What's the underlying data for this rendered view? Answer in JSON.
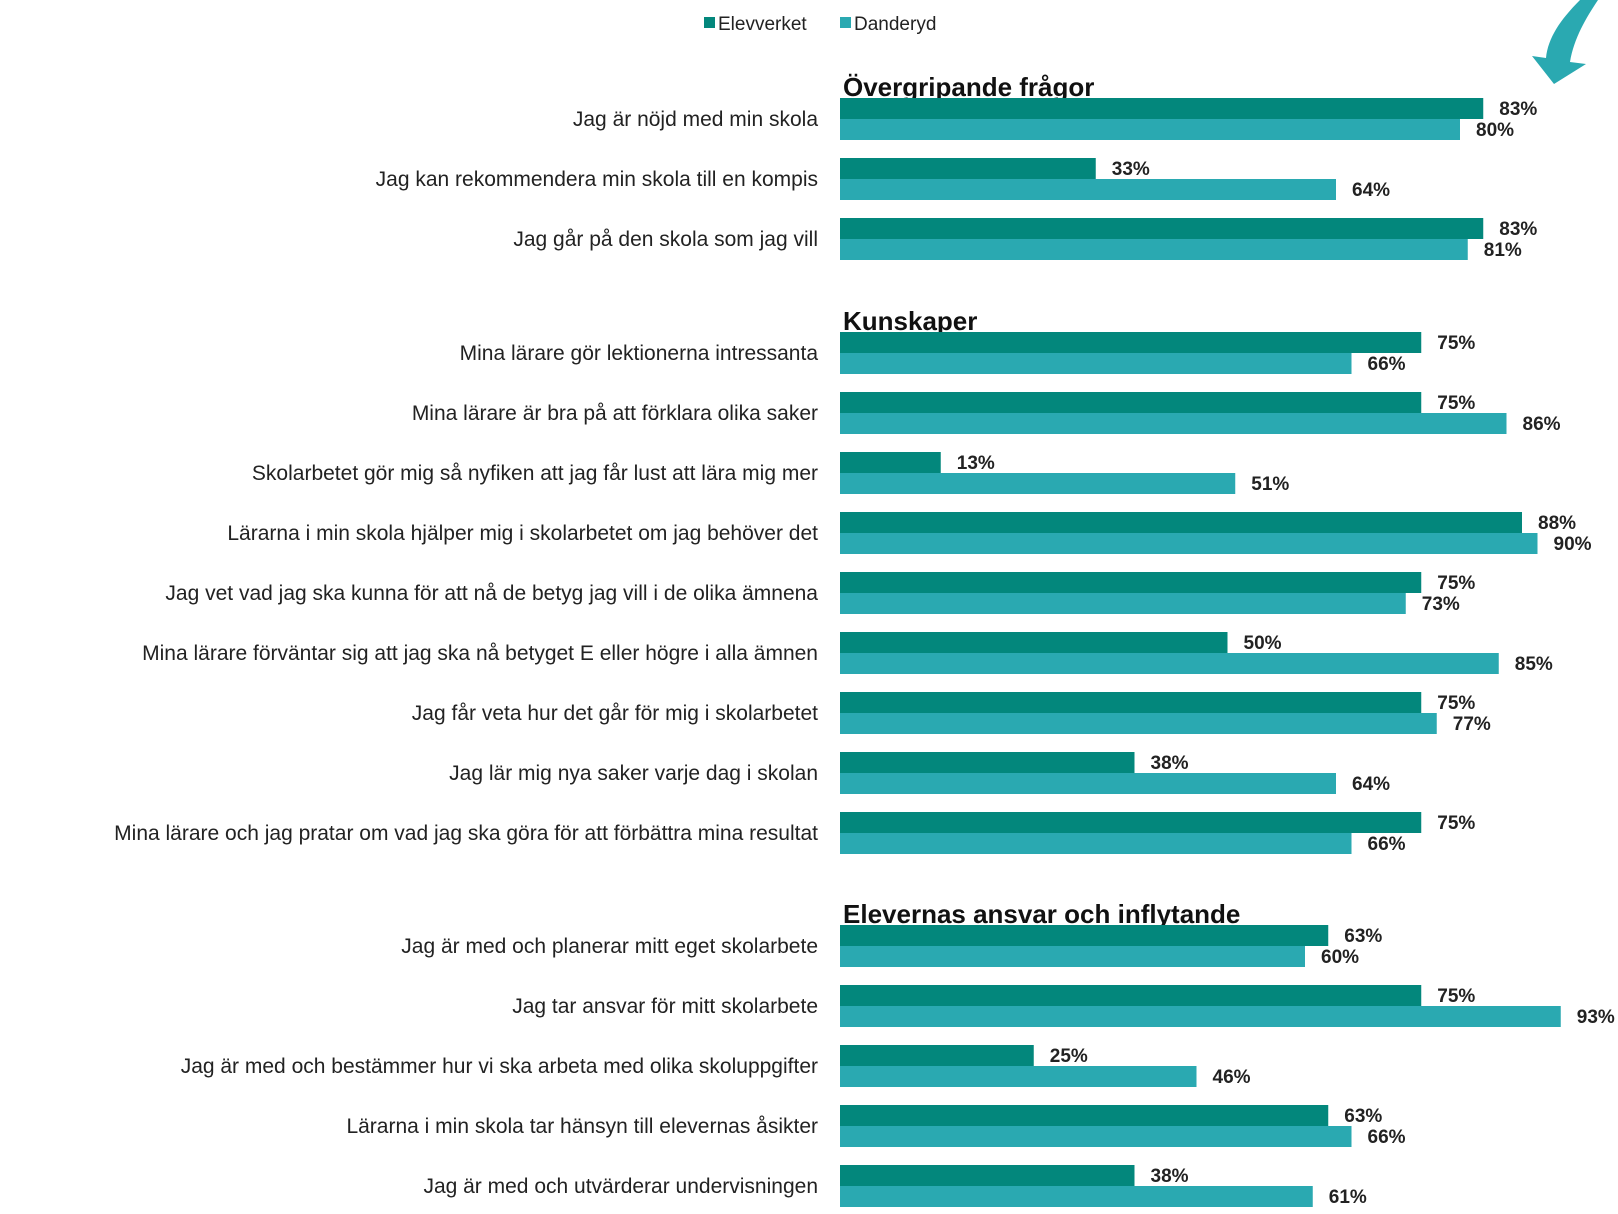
{
  "chart_data": {
    "type": "bar",
    "orientation": "horizontal",
    "xlim": [
      0,
      100
    ],
    "legend": {
      "placement": "top",
      "entries": [
        {
          "name": "Elevverket",
          "color": "#03877c"
        },
        {
          "name": "Danderyd",
          "color": "#2aa9b1"
        }
      ]
    },
    "series": [
      {
        "name": "Elevverket",
        "color": "#03877c"
      },
      {
        "name": "Danderyd",
        "color": "#2aa9b1"
      }
    ],
    "groups": [
      {
        "title": "Övergripande frågor",
        "items": [
          {
            "label": "Jag är nöjd med min skola",
            "values": [
              83,
              80
            ]
          },
          {
            "label": "Jag kan rekommendera min skola till en kompis",
            "values": [
              33,
              64
            ]
          },
          {
            "label": "Jag går på den skola som jag vill",
            "values": [
              83,
              81
            ]
          }
        ]
      },
      {
        "title": "Kunskaper",
        "items": [
          {
            "label": "Mina lärare gör lektionerna intressanta",
            "values": [
              75,
              66
            ]
          },
          {
            "label": "Mina lärare är bra på att förklara olika saker",
            "values": [
              75,
              86
            ]
          },
          {
            "label": "Skolarbetet gör mig så nyfiken att jag får lust att lära mig mer",
            "values": [
              13,
              51
            ]
          },
          {
            "label": "Lärarna i min skola hjälper mig i skolarbetet om jag behöver det",
            "values": [
              88,
              90
            ]
          },
          {
            "label": "Jag vet vad jag ska kunna för att nå de betyg jag vill i de olika ämnena",
            "values": [
              75,
              73
            ]
          },
          {
            "label": "Mina lärare förväntar sig att jag ska nå betyget E eller högre i alla ämnen",
            "values": [
              50,
              85
            ]
          },
          {
            "label": "Jag får veta hur det går för mig i skolarbetet",
            "values": [
              75,
              77
            ]
          },
          {
            "label": "Jag lär mig nya saker varje dag i skolan",
            "values": [
              38,
              64
            ]
          },
          {
            "label": "Mina lärare och jag pratar om vad jag ska göra för att förbättra mina resultat",
            "values": [
              75,
              66
            ]
          }
        ]
      },
      {
        "title": "Elevernas ansvar och inflytande",
        "items": [
          {
            "label": "Jag är med och planerar mitt eget skolarbete",
            "values": [
              63,
              60
            ]
          },
          {
            "label": "Jag tar ansvar för mitt skolarbete",
            "values": [
              75,
              93
            ]
          },
          {
            "label": "Jag är med och bestämmer hur vi ska arbeta med olika skoluppgifter",
            "values": [
              25,
              46
            ]
          },
          {
            "label": "Lärarna i min skola tar hänsyn till elevernas åsikter",
            "values": [
              63,
              66
            ]
          },
          {
            "label": "Jag är med och utvärderar undervisningen",
            "values": [
              38,
              61
            ]
          }
        ]
      }
    ],
    "value_suffix": "%",
    "arrow_icon": "down-arrow-icon"
  }
}
